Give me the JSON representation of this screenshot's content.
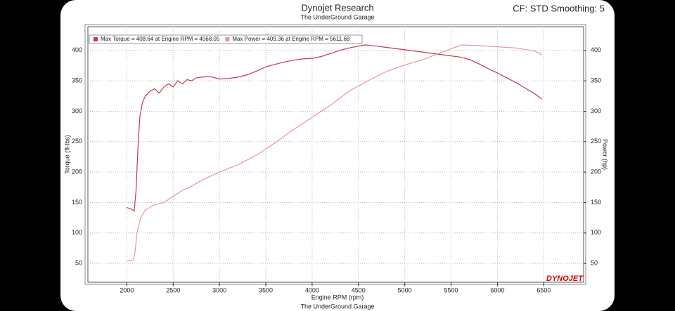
{
  "chart_data": {
    "type": "line",
    "title": "Dynojet Research",
    "subtitle": "The UnderGround Garage",
    "corner_text": "CF: STD Smoothing: 5",
    "xlabel": "Engine RPM (rpm)",
    "ylabel": "Torque (ft-lbs)",
    "y2label": "Power (hp)",
    "footer": "The UnderGround Garage",
    "logo": "DYNOJET",
    "legend": "upper left",
    "grid": true,
    "xlim": [
      1580,
      6930
    ],
    "ylim": [
      19,
      439
    ],
    "y2lim": [
      19,
      439
    ],
    "xticks": [
      2000,
      2500,
      3000,
      3500,
      4000,
      4500,
      5000,
      5500,
      6000,
      6500
    ],
    "yticks": [
      50,
      100,
      150,
      200,
      250,
      300,
      350,
      400
    ],
    "y2ticks": [
      50,
      100,
      150,
      200,
      250,
      300,
      350,
      400
    ],
    "series": [
      {
        "name": "Max Torque = 408.64 at Engine RPM = 4568.05",
        "color": "#c8374a",
        "x": [
          2000,
          2050,
          2080,
          2100,
          2120,
          2140,
          2170,
          2200,
          2250,
          2300,
          2350,
          2400,
          2450,
          2500,
          2550,
          2600,
          2650,
          2700,
          2750,
          2800,
          2900,
          3000,
          3100,
          3200,
          3300,
          3400,
          3500,
          3600,
          3700,
          3800,
          3900,
          4000,
          4100,
          4200,
          4300,
          4400,
          4568,
          4700,
          4800,
          5000,
          5200,
          5400,
          5600,
          5700,
          5800,
          5900,
          6000,
          6100,
          6200,
          6300,
          6400,
          6480
        ],
        "values": [
          142,
          139,
          136,
          170,
          240,
          290,
          315,
          325,
          333,
          337,
          330,
          340,
          345,
          340,
          350,
          345,
          352,
          350,
          355,
          356,
          357,
          353,
          354,
          356,
          360,
          366,
          373,
          377,
          381,
          384,
          386,
          387,
          390,
          395,
          400,
          404,
          409,
          407,
          405,
          401,
          397,
          393,
          389,
          385,
          378,
          370,
          363,
          355,
          347,
          338,
          329,
          320
        ]
      },
      {
        "name": "Max Power = 409.36 at Engine RPM = 5611.68",
        "color": "#e8959a",
        "x": [
          2000,
          2070,
          2090,
          2110,
          2150,
          2200,
          2300,
          2400,
          2450,
          2500,
          2600,
          2700,
          2800,
          2900,
          3000,
          3200,
          3400,
          3600,
          3800,
          4000,
          4200,
          4400,
          4600,
          4800,
          5000,
          5200,
          5400,
          5612,
          5800,
          6000,
          6200,
          6400,
          6480
        ],
        "values": [
          54,
          55,
          70,
          100,
          125,
          138,
          146,
          150,
          155,
          160,
          170,
          177,
          186,
          193,
          200,
          212,
          228,
          248,
          270,
          290,
          310,
          333,
          350,
          365,
          376,
          385,
          397,
          409,
          408,
          406,
          404,
          399,
          393
        ],
        "axis": "y2"
      }
    ]
  }
}
